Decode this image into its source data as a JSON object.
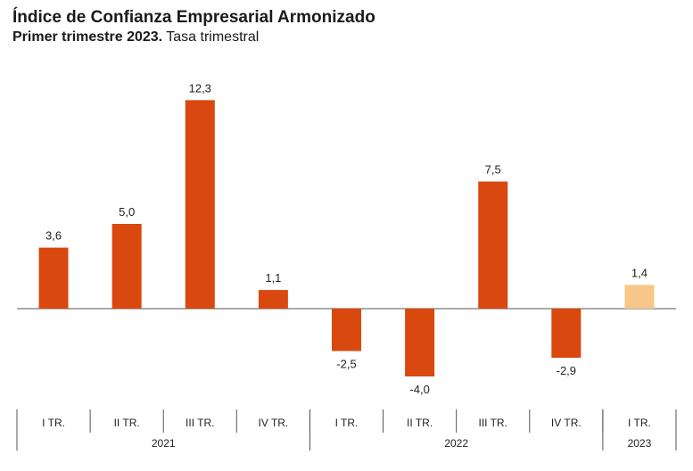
{
  "title": "Índice de Confianza Empresarial Armonizado",
  "subtitle_bold": "Primer trimestre 2023.",
  "subtitle_rest": "Tasa trimestral",
  "chart_data": {
    "type": "bar",
    "categories": [
      "I TR.",
      "II TR.",
      "III TR.",
      "IV TR.",
      "I TR.",
      "II TR.",
      "III TR.",
      "IV TR.",
      "I TR."
    ],
    "values": [
      3.6,
      5.0,
      12.3,
      1.1,
      -2.5,
      -4.0,
      7.5,
      -2.9,
      1.4
    ],
    "value_labels": [
      "3,6",
      "5,0",
      "12,3",
      "1,1",
      "-2,5",
      "-4,0",
      "7,5",
      "-2,9",
      "1,4"
    ],
    "groups": [
      {
        "label": "2021",
        "count": 4
      },
      {
        "label": "2022",
        "count": 4
      },
      {
        "label": "2023",
        "count": 1
      }
    ],
    "highlight_last": true,
    "colors": {
      "bar": "#d9480f",
      "highlight": "#f7c78a",
      "axis": "#555555"
    },
    "grid": false,
    "legend": "none"
  }
}
